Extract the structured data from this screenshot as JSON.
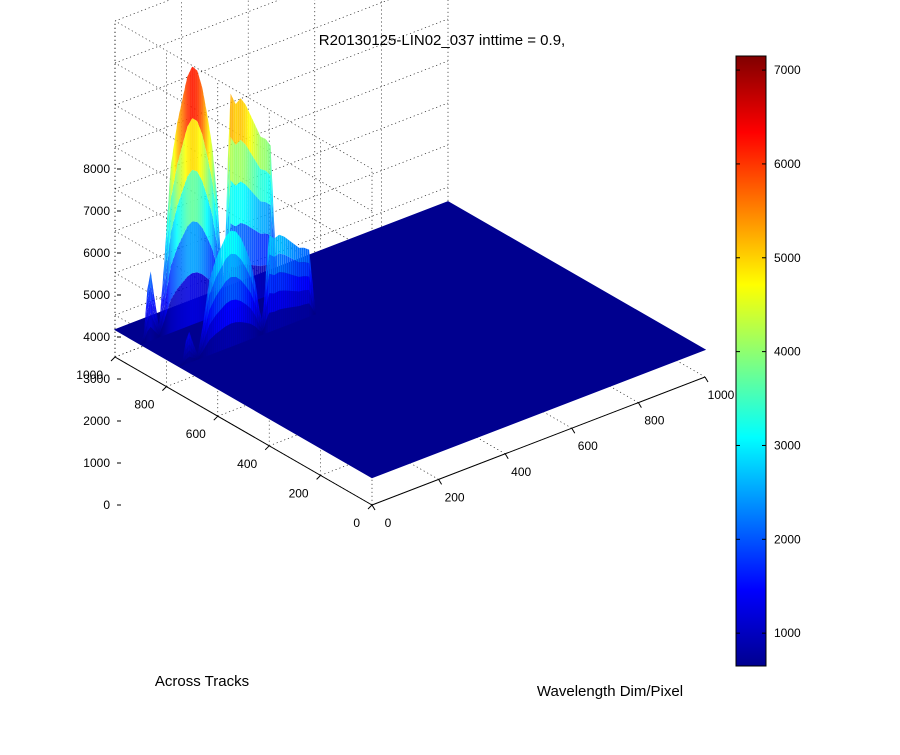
{
  "chart_data": {
    "type": "surface",
    "title": "R20130125-LIN02_037 inttime = 0.9,",
    "xlabel": "Wavelength Dim/Pixel",
    "ylabel": "Across Tracks",
    "zlabel": "",
    "x_ticks": [
      "0",
      "200",
      "400",
      "600",
      "800",
      "1000"
    ],
    "y_ticks": [
      "0",
      "200",
      "400",
      "600",
      "800",
      "1000"
    ],
    "z_ticks": [
      "0",
      "1000",
      "2000",
      "3000",
      "4000",
      "5000",
      "6000",
      "7000",
      "8000"
    ],
    "xlim": [
      0,
      1000
    ],
    "ylim": [
      0,
      1000
    ],
    "zlim": [
      0,
      8000
    ],
    "grid": true,
    "colormap": "jet",
    "colorbar": {
      "position": "right",
      "range": [
        650,
        7150
      ],
      "ticks": [
        "1000",
        "2000",
        "3000",
        "4000",
        "5000",
        "6000",
        "7000"
      ]
    },
    "baseline_value": 650,
    "profile_x": [
      0,
      10,
      20,
      30,
      40,
      55,
      70,
      90,
      110,
      125,
      140,
      155,
      170,
      185,
      200,
      215,
      230,
      240,
      248,
      255,
      262,
      270,
      285,
      300,
      315,
      330,
      345,
      360,
      375,
      390,
      410
    ],
    "profile_z": [
      650,
      900,
      1900,
      2300,
      1700,
      900,
      2300,
      4600,
      5600,
      6100,
      6600,
      6800,
      6650,
      6200,
      5500,
      4700,
      3400,
      2100,
      1500,
      2400,
      4300,
      5800,
      5500,
      5600,
      5400,
      5100,
      4800,
      4500,
      4400,
      4200,
      650
    ],
    "rows_y": [
      750,
      900
    ],
    "row_scales": [
      0.45,
      1.0
    ]
  }
}
